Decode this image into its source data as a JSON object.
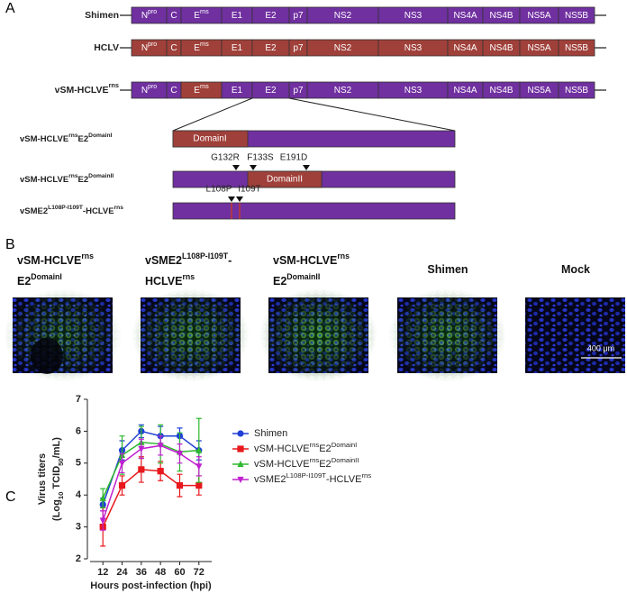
{
  "panel_a": {
    "label": "A",
    "genomes": [
      {
        "name": [
          [
            "Shimen"
          ]
        ],
        "segment_colors": [
          "#7030a0",
          "#7030a0",
          "#7030a0",
          "#7030a0",
          "#7030a0",
          "#7030a0",
          "#7030a0",
          "#7030a0",
          "#7030a0",
          "#7030a0",
          "#7030a0",
          "#7030a0"
        ],
        "segments": [
          [
            "N",
            {
              "sup": "pro"
            }
          ],
          [
            "C"
          ],
          [
            "E",
            {
              "sup": "rns"
            }
          ],
          [
            "E1"
          ],
          [
            "E2"
          ],
          [
            "p7"
          ],
          [
            "NS2"
          ],
          [
            "NS3"
          ],
          [
            "NS4A"
          ],
          [
            "NS4B"
          ],
          [
            "NS5A"
          ],
          [
            "NS5B"
          ]
        ]
      },
      {
        "name": [
          [
            "HCLV"
          ]
        ],
        "segment_colors": [
          "#a0403a",
          "#a0403a",
          "#a0403a",
          "#a0403a",
          "#a0403a",
          "#a0403a",
          "#a0403a",
          "#a0403a",
          "#a0403a",
          "#a0403a",
          "#a0403a",
          "#a0403a"
        ],
        "segments": [
          [
            "N",
            {
              "sup": "pro"
            }
          ],
          [
            "C"
          ],
          [
            "E",
            {
              "sup": "rns"
            }
          ],
          [
            "E1"
          ],
          [
            "E2"
          ],
          [
            "p7"
          ],
          [
            "NS2"
          ],
          [
            "NS3"
          ],
          [
            "NS4A"
          ],
          [
            "NS4B"
          ],
          [
            "NS5A"
          ],
          [
            "NS5B"
          ]
        ]
      },
      {
        "name": [
          [
            "vSM-HCLVE",
            {
              "sup": "rns"
            }
          ]
        ],
        "segment_colors": [
          "#7030a0",
          "#7030a0",
          "#a0403a",
          "#7030a0",
          "#7030a0",
          "#7030a0",
          "#7030a0",
          "#7030a0",
          "#7030a0",
          "#7030a0",
          "#7030a0",
          "#7030a0"
        ],
        "segments": [
          [
            "N",
            {
              "sup": "pro"
            }
          ],
          [
            "C"
          ],
          [
            "E",
            {
              "sup": "rns"
            }
          ],
          [
            "E1"
          ],
          [
            "E2"
          ],
          [
            "p7"
          ],
          [
            "NS2"
          ],
          [
            "NS3"
          ],
          [
            "NS4A"
          ],
          [
            "NS4B"
          ],
          [
            "NS5A"
          ],
          [
            "NS5B"
          ]
        ]
      }
    ],
    "constructs": [
      {
        "name": [
          "vSM-HCLVE",
          {
            "sup": "rns"
          },
          "E2",
          {
            "sup": "DomainI"
          }
        ],
        "domain": "DomainI",
        "color": "#7030a0",
        "domain_color": "#a0403a"
      },
      {
        "name": [
          "vSM-HCLVE",
          {
            "sup": "rns"
          },
          "E2",
          {
            "sup": "DomainII"
          }
        ],
        "domain": "DomainII",
        "mutations": [
          "G132R",
          "F133S",
          "E191D"
        ],
        "color": "#7030a0",
        "domain_color": "#a0403a"
      },
      {
        "name": [
          "vSME2",
          {
            "sup": "L108P-I109T"
          },
          "-HCLVE",
          {
            "sup": "rns"
          }
        ],
        "mutations": [
          "L108P",
          "I109T"
        ],
        "color": "#7030a0",
        "mutation_color": "#c0392b"
      }
    ]
  },
  "panel_b": {
    "label": "B",
    "images": [
      {
        "label": [
          [
            "vSM-HCLVE",
            {
              "sup": "rns"
            }
          ],
          [
            "E2",
            {
              "sup": "DomainI"
            }
          ]
        ]
      },
      {
        "label": [
          [
            "vSME2",
            {
              "sup": "L108P-I109T"
            },
            "-"
          ],
          [
            "HCLVE",
            {
              "sup": "rns"
            }
          ]
        ]
      },
      {
        "label": [
          [
            "vSM-HCLVE",
            {
              "sup": "rns"
            }
          ],
          [
            "E2",
            {
              "sup": "DomainII"
            }
          ]
        ]
      },
      {
        "label": [
          [
            "Shimen"
          ]
        ]
      },
      {
        "label": [
          [
            "Mock"
          ]
        ],
        "scale_bar": "400 μm"
      }
    ]
  },
  "chart_data": {
    "type": "line",
    "label": "C",
    "xlabel": "Hours post-infection (hpi)",
    "ylabel": [
      [
        "Virus titers"
      ],
      [
        "(Log",
        {
          "sub": "10"
        },
        " TCID",
        {
          "sub": "50"
        },
        "/mL)"
      ]
    ],
    "x": [
      12,
      24,
      36,
      48,
      60,
      72
    ],
    "xlim": [
      4,
      80
    ],
    "xticks": [
      12,
      24,
      36,
      48,
      60,
      72
    ],
    "ylim": [
      2,
      7
    ],
    "yticks": [
      2,
      3,
      4,
      5,
      6,
      7
    ],
    "series": [
      {
        "name": [
          "Shimen"
        ],
        "color": "#1f3fd6",
        "marker": "circle",
        "values": [
          3.7,
          5.4,
          6.0,
          5.85,
          5.85,
          5.4
        ],
        "errors": [
          0.2,
          0.3,
          0.2,
          0.3,
          0.25,
          0.3
        ]
      },
      {
        "name": [
          "vSM-HCLVE",
          {
            "sup": "rns"
          },
          "E2",
          {
            "sup": "DomainI"
          }
        ],
        "color": "#e8181c",
        "marker": "square",
        "values": [
          3.0,
          4.3,
          4.8,
          4.75,
          4.3,
          4.3
        ],
        "errors": [
          0.6,
          0.3,
          0.4,
          0.3,
          0.35,
          0.3
        ]
      },
      {
        "name": [
          "vSM-HCLVE",
          {
            "sup": "rns"
          },
          "E2",
          {
            "sup": "DomainII"
          }
        ],
        "color": "#2eb82e",
        "marker": "triangle-up",
        "values": [
          3.9,
          5.25,
          5.65,
          5.6,
          5.35,
          5.4
        ],
        "errors": [
          0.3,
          0.6,
          0.5,
          0.6,
          0.6,
          1.0
        ]
      },
      {
        "name": [
          "vSME2",
          {
            "sup": "L108P-I109T"
          },
          "-HCLVE",
          {
            "sup": "rns"
          }
        ],
        "color": "#c020d0",
        "marker": "triangle-down",
        "values": [
          3.2,
          5.0,
          5.45,
          5.55,
          5.3,
          4.9
        ],
        "errors": [
          0.3,
          0.3,
          0.3,
          0.3,
          0.3,
          0.3
        ]
      }
    ]
  }
}
